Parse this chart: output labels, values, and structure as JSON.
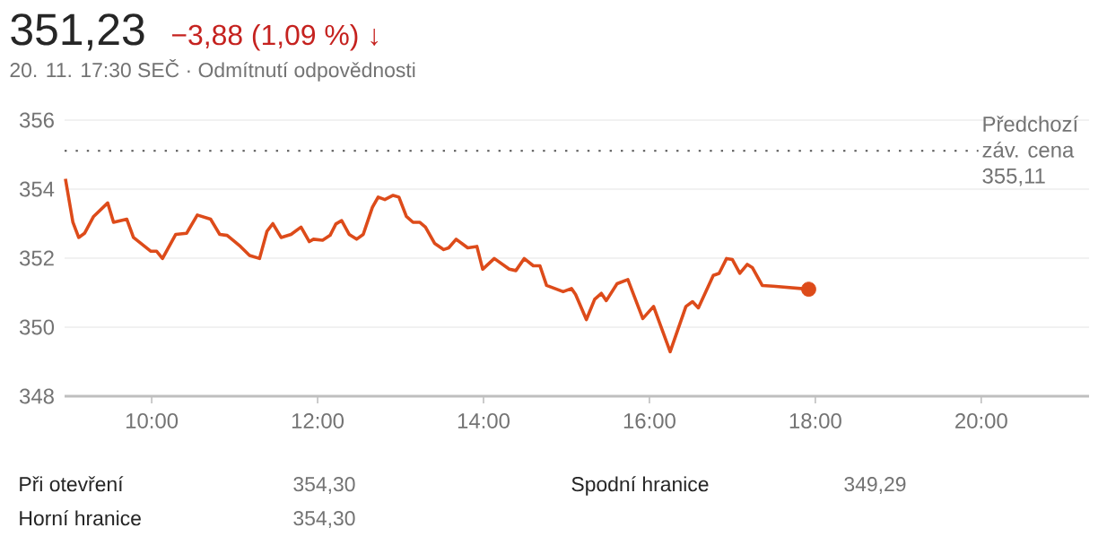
{
  "chart_data": {
    "type": "line",
    "title": "351,23",
    "subtitle": "−3,88 (1,09 %) ↓",
    "annotations": [
      "20. 11. 17:30 SEČ · Odmítnutí odpovědnosti",
      "Při otevření",
      "354,30",
      "Horní hranice",
      "354,30",
      "Spodní hranice",
      "349,29"
    ],
    "series": [
      {
        "color": "#dd4b1a",
        "x": [
          8.96,
          9.05,
          9.12,
          9.19,
          9.3,
          9.47,
          9.54,
          9.7,
          9.78,
          9.99,
          10.06,
          10.13,
          10.29,
          10.42,
          10.55,
          10.71,
          10.82,
          10.91,
          11.07,
          11.18,
          11.3,
          11.39,
          11.46,
          11.56,
          11.68,
          11.8,
          11.9,
          11.95,
          12.06,
          12.15,
          12.22,
          12.29,
          12.38,
          12.47,
          12.55,
          12.66,
          12.73,
          12.81,
          12.91,
          12.98,
          13.07,
          13.15,
          13.23,
          13.3,
          13.41,
          13.52,
          13.58,
          13.67,
          13.81,
          13.92,
          13.99,
          14.13,
          14.31,
          14.39,
          14.49,
          14.6,
          14.68,
          14.76,
          14.96,
          15.06,
          15.11,
          15.24,
          15.34,
          15.42,
          15.48,
          15.61,
          15.74,
          15.92,
          16.05,
          16.25,
          16.44,
          16.52,
          16.59,
          16.77,
          16.84,
          16.93,
          17.0,
          17.09,
          17.18,
          17.24,
          17.36,
          17.49,
          17.92
        ],
        "values": [
          354.3,
          353.04,
          352.6,
          352.72,
          353.21,
          353.6,
          353.04,
          353.13,
          352.6,
          352.2,
          352.2,
          351.99,
          352.69,
          352.72,
          353.25,
          353.13,
          352.69,
          352.66,
          352.34,
          352.08,
          351.99,
          352.78,
          353.0,
          352.6,
          352.69,
          352.9,
          352.48,
          352.55,
          352.52,
          352.66,
          352.99,
          353.09,
          352.69,
          352.55,
          352.69,
          353.47,
          353.77,
          353.7,
          353.82,
          353.77,
          353.21,
          353.04,
          353.04,
          352.9,
          352.43,
          352.25,
          352.3,
          352.55,
          352.3,
          352.34,
          351.68,
          351.99,
          351.68,
          351.64,
          351.99,
          351.78,
          351.78,
          351.21,
          351.03,
          351.12,
          350.95,
          350.22,
          350.81,
          350.98,
          350.77,
          351.26,
          351.38,
          350.25,
          350.6,
          349.29,
          350.6,
          350.74,
          350.56,
          351.5,
          351.56,
          351.99,
          351.96,
          351.56,
          351.82,
          351.73,
          351.21,
          351.19,
          351.1
        ]
      },
      {
        "type": "scatter",
        "marker": "circle",
        "color": "#dd4b1a",
        "x": [
          17.92
        ],
        "values": [
          351.1
        ]
      }
    ],
    "xlim": [
      8.95,
      21.3
    ],
    "ylim": [
      348,
      356
    ],
    "xticks": [
      {
        "value": 10,
        "label": "10:00"
      },
      {
        "value": 12,
        "label": "12:00"
      },
      {
        "value": 14,
        "label": "14:00"
      },
      {
        "value": 16,
        "label": "16:00"
      },
      {
        "value": 18,
        "label": "18:00"
      },
      {
        "value": 20,
        "label": "20:00"
      }
    ],
    "yticks": [
      348,
      350,
      352,
      354,
      356
    ],
    "grid": "y",
    "marker": "none",
    "line_style": "solid",
    "ref_lines": [
      {
        "axis": "y",
        "value": 355.11,
        "label": "Předchozí záv. cena 355,11",
        "line_style": "dotted",
        "color": "#555555"
      }
    ]
  }
}
